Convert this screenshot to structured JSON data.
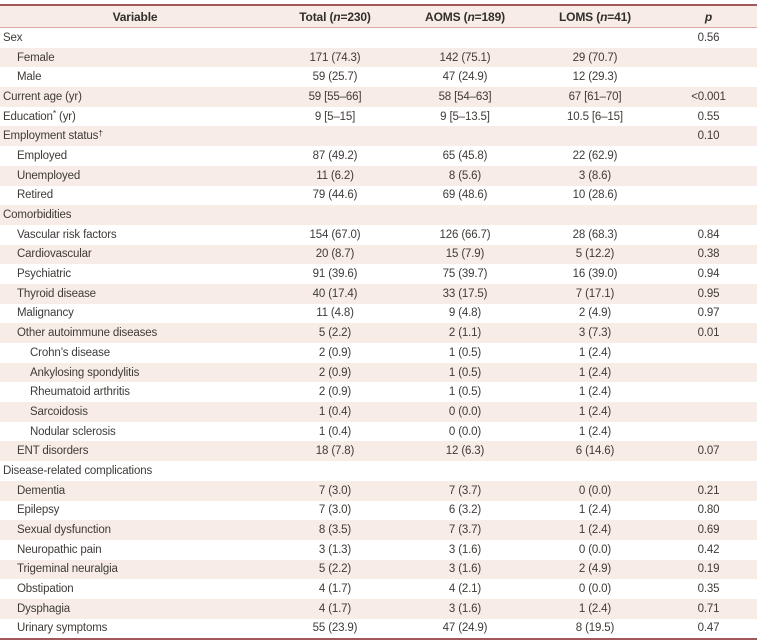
{
  "colors": {
    "rule": "#a2575a",
    "rule_light": "#dba8a6",
    "stripe": "#f7ece6",
    "text": "#3f3b38"
  },
  "table": {
    "header": {
      "variable": "Variable",
      "total": {
        "pre": "Total (",
        "n": "n",
        "post": "=230)"
      },
      "aoms": {
        "pre": "AOMS (",
        "n": "n",
        "post": "=189)"
      },
      "loms": {
        "pre": "LOMS (",
        "n": "n",
        "post": "=41)"
      },
      "p": "p"
    },
    "rows": [
      {
        "label": "Sex",
        "indent": 0,
        "total": "",
        "aoms": "",
        "loms": "",
        "p": "0.56"
      },
      {
        "label": "Female",
        "indent": 1,
        "total": "171 (74.3)",
        "aoms": "142 (75.1)",
        "loms": "29 (70.7)",
        "p": ""
      },
      {
        "label": "Male",
        "indent": 1,
        "total": "59 (25.7)",
        "aoms": "47 (24.9)",
        "loms": "12 (29.3)",
        "p": ""
      },
      {
        "label": "Current age (yr)",
        "indent": 0,
        "total": "59 [55–66]",
        "aoms": "58 [54–63]",
        "loms": "67 [61–70]",
        "p": "<0.001"
      },
      {
        "label": "Education",
        "sup": "*",
        "rest": " (yr)",
        "indent": 0,
        "total": "9 [5–15]",
        "aoms": "9 [5–13.5]",
        "loms": "10.5 [6–15]",
        "p": "0.55"
      },
      {
        "label": "Employment status",
        "sup": "†",
        "rest": "",
        "indent": 0,
        "total": "",
        "aoms": "",
        "loms": "",
        "p": "0.10"
      },
      {
        "label": "Employed",
        "indent": 1,
        "total": "87 (49.2)",
        "aoms": "65 (45.8)",
        "loms": "22 (62.9)",
        "p": ""
      },
      {
        "label": "Unemployed",
        "indent": 1,
        "total": "11 (6.2)",
        "aoms": "8 (5.6)",
        "loms": "3 (8.6)",
        "p": ""
      },
      {
        "label": "Retired",
        "indent": 1,
        "total": "79 (44.6)",
        "aoms": "69 (48.6)",
        "loms": "10 (28.6)",
        "p": ""
      },
      {
        "label": "Comorbidities",
        "indent": 0,
        "total": "",
        "aoms": "",
        "loms": "",
        "p": ""
      },
      {
        "label": "Vascular risk factors",
        "indent": 1,
        "total": "154 (67.0)",
        "aoms": "126 (66.7)",
        "loms": "28 (68.3)",
        "p": "0.84"
      },
      {
        "label": "Cardiovascular",
        "indent": 1,
        "total": "20 (8.7)",
        "aoms": "15 (7.9)",
        "loms": "5 (12.2)",
        "p": "0.38"
      },
      {
        "label": "Psychiatric",
        "indent": 1,
        "total": "91 (39.6)",
        "aoms": "75 (39.7)",
        "loms": "16 (39.0)",
        "p": "0.94"
      },
      {
        "label": "Thyroid disease",
        "indent": 1,
        "total": "40 (17.4)",
        "aoms": "33 (17.5)",
        "loms": "7 (17.1)",
        "p": "0.95"
      },
      {
        "label": "Malignancy",
        "indent": 1,
        "total": "11 (4.8)",
        "aoms": "9 (4.8)",
        "loms": "2 (4.9)",
        "p": "0.97"
      },
      {
        "label": "Other autoimmune diseases",
        "indent": 1,
        "total": "5 (2.2)",
        "aoms": "2 (1.1)",
        "loms": "3 (7.3)",
        "p": "0.01"
      },
      {
        "label": "Crohn’s disease",
        "indent": 2,
        "total": "2 (0.9)",
        "aoms": "1 (0.5)",
        "loms": "1 (2.4)",
        "p": ""
      },
      {
        "label": "Ankylosing spondylitis",
        "indent": 2,
        "total": "2 (0.9)",
        "aoms": "1 (0.5)",
        "loms": "1 (2.4)",
        "p": ""
      },
      {
        "label": "Rheumatoid arthritis",
        "indent": 2,
        "total": "2 (0.9)",
        "aoms": "1 (0.5)",
        "loms": "1 (2.4)",
        "p": ""
      },
      {
        "label": "Sarcoidosis",
        "indent": 2,
        "total": "1 (0.4)",
        "aoms": "0 (0.0)",
        "loms": "1 (2.4)",
        "p": ""
      },
      {
        "label": "Nodular sclerosis",
        "indent": 2,
        "total": "1 (0.4)",
        "aoms": "0 (0.0)",
        "loms": "1 (2.4)",
        "p": ""
      },
      {
        "label": "ENT disorders",
        "indent": 1,
        "total": "18 (7.8)",
        "aoms": "12 (6.3)",
        "loms": "6 (14.6)",
        "p": "0.07"
      },
      {
        "label": "Disease-related complications",
        "indent": 0,
        "total": "",
        "aoms": "",
        "loms": "",
        "p": ""
      },
      {
        "label": "Dementia",
        "indent": 1,
        "total": "7 (3.0)",
        "aoms": "7 (3.7)",
        "loms": "0 (0.0)",
        "p": "0.21"
      },
      {
        "label": "Epilepsy",
        "indent": 1,
        "total": "7 (3.0)",
        "aoms": "6 (3.2)",
        "loms": "1 (2.4)",
        "p": "0.80"
      },
      {
        "label": "Sexual dysfunction",
        "indent": 1,
        "total": "8 (3.5)",
        "aoms": "7 (3.7)",
        "loms": "1 (2.4)",
        "p": "0.69"
      },
      {
        "label": "Neuropathic pain",
        "indent": 1,
        "total": "3 (1.3)",
        "aoms": "3 (1.6)",
        "loms": "0 (0.0)",
        "p": "0.42"
      },
      {
        "label": "Trigeminal neuralgia",
        "indent": 1,
        "total": "5 (2.2)",
        "aoms": "3 (1.6)",
        "loms": "2 (4.9)",
        "p": "0.19"
      },
      {
        "label": "Obstipation",
        "indent": 1,
        "total": "4 (1.7)",
        "aoms": "4 (2.1)",
        "loms": "0 (0.0)",
        "p": "0.35"
      },
      {
        "label": "Dysphagia",
        "indent": 1,
        "total": "4 (1.7)",
        "aoms": "3 (1.6)",
        "loms": "1 (2.4)",
        "p": "0.71"
      },
      {
        "label": "Urinary symptoms",
        "indent": 1,
        "total": "55 (23.9)",
        "aoms": "47 (24.9)",
        "loms": "8 (19.5)",
        "p": "0.47"
      }
    ]
  }
}
